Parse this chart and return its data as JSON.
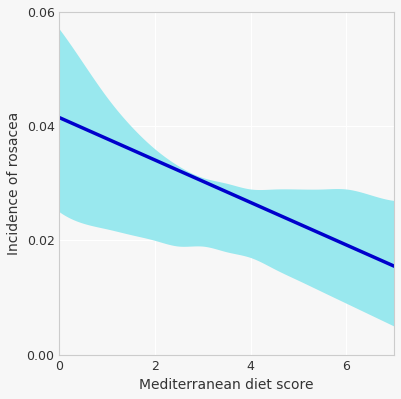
{
  "x_min": 0,
  "x_max": 7,
  "y_min": 0.0,
  "y_max": 0.06,
  "x_ticks": [
    0,
    2,
    4,
    6
  ],
  "y_ticks": [
    0.0,
    0.02,
    0.04,
    0.06
  ],
  "xlabel": "Mediterranean diet score",
  "ylabel": "Incidence of rosacea",
  "line_color": "#0000CC",
  "ci_color": "#99E8EE",
  "background_color": "#F7F7F7",
  "grid_color": "#FFFFFF",
  "line_y_start": 0.0415,
  "line_y_end": 0.0155,
  "line_width": 2.5,
  "ci_x": [
    0.0,
    0.5,
    1.0,
    1.5,
    2.0,
    2.5,
    3.0,
    3.5,
    4.0,
    4.5,
    5.0,
    5.5,
    6.0,
    6.5,
    7.0
  ],
  "ci_upper": [
    0.057,
    0.051,
    0.045,
    0.04,
    0.036,
    0.033,
    0.031,
    0.03,
    0.029,
    0.029,
    0.029,
    0.029,
    0.029,
    0.028,
    0.027
  ],
  "ci_lower": [
    0.025,
    0.023,
    0.022,
    0.021,
    0.02,
    0.019,
    0.019,
    0.018,
    0.017,
    0.015,
    0.013,
    0.011,
    0.009,
    0.007,
    0.005
  ]
}
